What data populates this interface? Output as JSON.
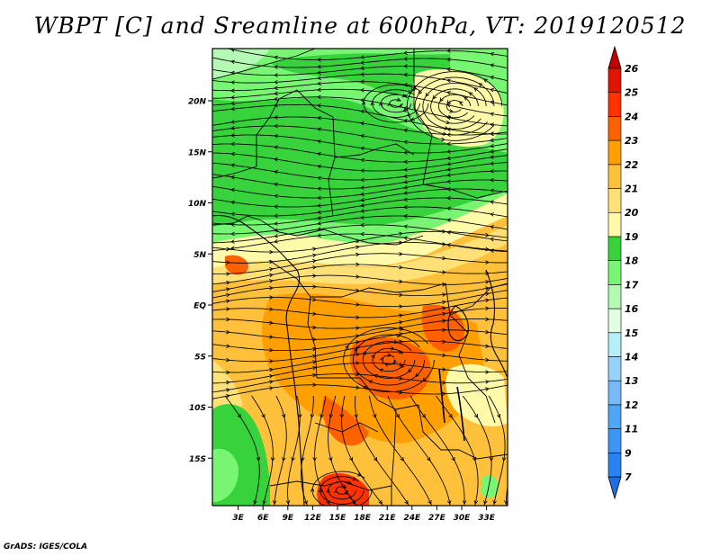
{
  "title": "WBPT [C] and Sreamline at 600hPa, VT: 2019120512",
  "credit": "GrADS: IGES/COLA",
  "lat_labels": [
    "20N",
    "15N",
    "10N",
    "5N",
    "EQ",
    "5S",
    "10S",
    "15S"
  ],
  "lat_values": [
    20,
    15,
    10,
    5,
    0,
    -5,
    -10,
    -15
  ],
  "lon_labels": [
    "3E",
    "6E",
    "9E",
    "12E",
    "15E",
    "18E",
    "21E",
    "24E",
    "27E",
    "30E",
    "33E"
  ],
  "lon_values": [
    3,
    6,
    9,
    12,
    15,
    18,
    21,
    24,
    27,
    30,
    33
  ],
  "colorbar": {
    "labels": [
      "7",
      "9",
      "11",
      "12",
      "13",
      "14",
      "15",
      "16",
      "17",
      "18",
      "19",
      "20",
      "21",
      "22",
      "23",
      "24",
      "25",
      "26"
    ],
    "colors": [
      "#1e6ee6",
      "#2882f0",
      "#3c96f5",
      "#50a5f5",
      "#78b9f9",
      "#96d2fa",
      "#b4f0fa",
      "#e1ffe1",
      "#b4fab4",
      "#78f573",
      "#37d23c",
      "#fffaaa",
      "#ffe178",
      "#ffc03c",
      "#ffa000",
      "#ff6000",
      "#ff3200",
      "#e11400",
      "#c00000"
    ]
  },
  "map_colors": {
    "green_dark": "#37d23c",
    "green_mid": "#78f573",
    "green_light": "#b4fab4",
    "yellow": "#fffaaa",
    "orange_light": "#ffe178",
    "orange": "#ffc03c",
    "orange_dark": "#ffa000",
    "red_orange": "#ff6000",
    "deep": "#ff3200"
  }
}
